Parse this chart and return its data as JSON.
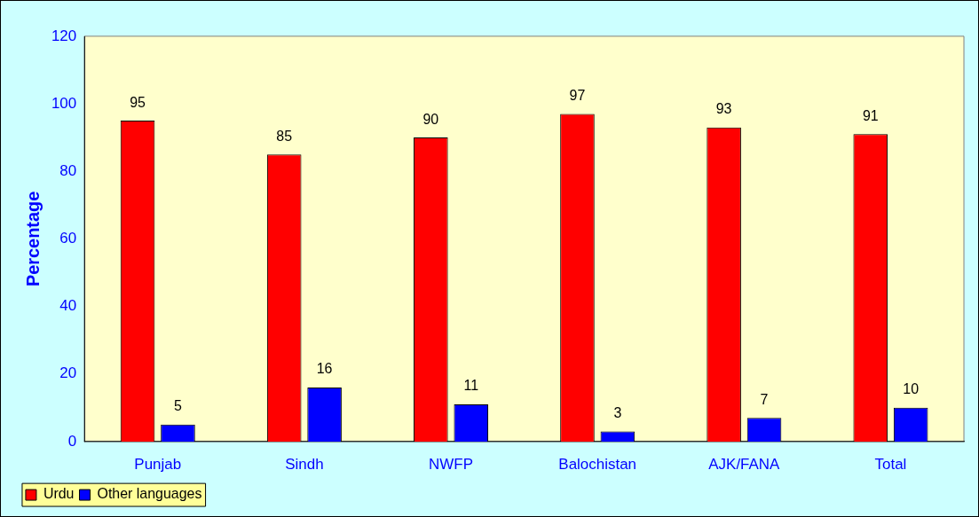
{
  "chart_data": {
    "type": "bar",
    "ylabel": "Percentage",
    "categories": [
      "Punjab",
      "Sindh",
      "NWFP",
      "Balochistan",
      "AJK/FANA",
      "Total"
    ],
    "series": [
      {
        "name": "Urdu",
        "color": "#ff0000",
        "values": [
          95,
          85,
          90,
          97,
          93,
          91
        ]
      },
      {
        "name": "Other languages",
        "color": "#0000ff",
        "values": [
          5,
          16,
          11,
          3,
          7,
          10
        ]
      }
    ],
    "ylim": [
      0,
      120
    ],
    "yticks": [
      0,
      20,
      40,
      60,
      80,
      100,
      120
    ],
    "grid": false,
    "legend": "bottom left",
    "data_labels": true
  }
}
